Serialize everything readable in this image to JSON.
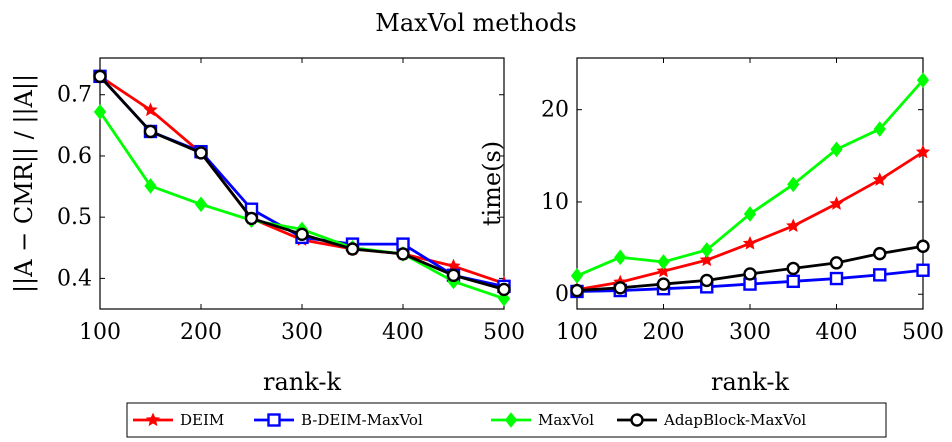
{
  "figure": {
    "title": "MaxVol methods"
  },
  "chart_data": [
    {
      "type": "line",
      "title": "",
      "xlabel": "rank-k",
      "ylabel": "||A − CMR|| / ||A||",
      "xlim": [
        100,
        500
      ],
      "ylim": [
        0.35,
        0.76
      ],
      "xticks": [
        100,
        200,
        300,
        400,
        500
      ],
      "yticks": [
        0.4,
        0.5,
        0.6,
        0.7
      ],
      "grid": false,
      "x": [
        100,
        150,
        200,
        250,
        300,
        350,
        400,
        450,
        500
      ],
      "series": [
        {
          "name": "DEIM",
          "color": "#ff0000",
          "marker": "star",
          "values": [
            0.73,
            0.675,
            0.605,
            0.498,
            0.463,
            0.448,
            0.44,
            0.42,
            0.392
          ]
        },
        {
          "name": "B-DEIM-MaxVol",
          "color": "#0000ff",
          "marker": "square",
          "values": [
            0.73,
            0.64,
            0.607,
            0.513,
            0.467,
            0.456,
            0.456,
            0.405,
            0.387
          ]
        },
        {
          "name": "MaxVol",
          "color": "#00ff00",
          "marker": "diamond",
          "values": [
            0.672,
            0.551,
            0.521,
            0.495,
            0.48,
            0.45,
            0.44,
            0.395,
            0.367
          ]
        },
        {
          "name": "AdapBlock-MaxVol",
          "color": "#000000",
          "marker": "circle",
          "values": [
            0.73,
            0.64,
            0.605,
            0.498,
            0.472,
            0.448,
            0.44,
            0.405,
            0.382
          ]
        }
      ]
    },
    {
      "type": "line",
      "title": "",
      "xlabel": "rank-k",
      "ylabel": "time(s)",
      "xlim": [
        100,
        500
      ],
      "ylim": [
        -1.6,
        25.6
      ],
      "xticks": [
        100,
        200,
        300,
        400,
        500
      ],
      "yticks": [
        0,
        10,
        20
      ],
      "grid": false,
      "x": [
        100,
        150,
        200,
        250,
        300,
        350,
        400,
        450,
        500
      ],
      "series": [
        {
          "name": "DEIM",
          "color": "#ff0000",
          "marker": "star",
          "values": [
            0.5,
            1.3,
            2.5,
            3.7,
            5.5,
            7.4,
            9.8,
            12.4,
            15.4
          ]
        },
        {
          "name": "B-DEIM-MaxVol",
          "color": "#0000ff",
          "marker": "square",
          "values": [
            0.3,
            0.4,
            0.6,
            0.8,
            1.1,
            1.4,
            1.7,
            2.1,
            2.6
          ]
        },
        {
          "name": "MaxVol",
          "color": "#00ff00",
          "marker": "diamond",
          "values": [
            2.0,
            4.0,
            3.5,
            4.8,
            8.7,
            11.9,
            15.7,
            17.9,
            23.2
          ]
        },
        {
          "name": "AdapBlock-MaxVol",
          "color": "#000000",
          "marker": "circle",
          "values": [
            0.4,
            0.7,
            1.1,
            1.5,
            2.2,
            2.8,
            3.4,
            4.4,
            5.2
          ]
        }
      ]
    }
  ],
  "legend": {
    "placement": "bottom-center",
    "entries": [
      "DEIM",
      "B-DEIM-MaxVol",
      "MaxVol",
      "AdapBlock-MaxVol"
    ]
  }
}
